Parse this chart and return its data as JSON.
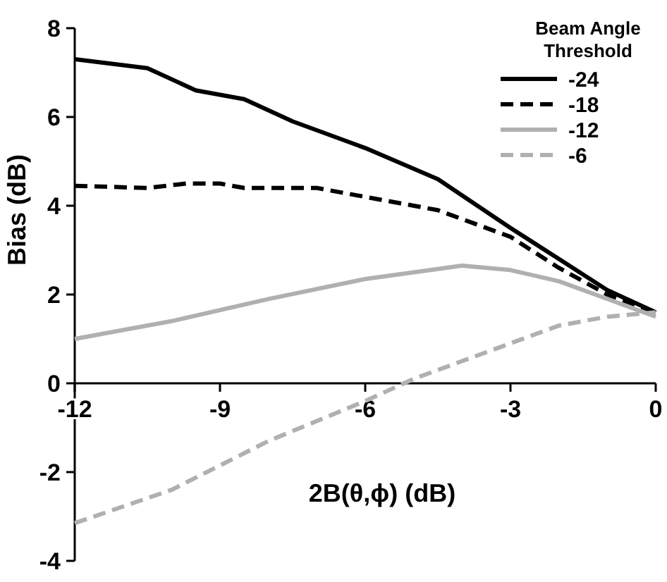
{
  "chart_data": {
    "type": "line",
    "xlabel": "2B(θ,ϕ) (dB)",
    "ylabel": "Bias (dB)",
    "legend_title": "Beam Angle Threshold",
    "legend": "top right",
    "grid": false,
    "xlim": [
      -12,
      0
    ],
    "xticks": [
      -12,
      -9,
      -6,
      -3,
      0
    ],
    "ylim": [
      -4,
      8
    ],
    "yticks": [
      -4,
      -2,
      0,
      2,
      4,
      6,
      8
    ],
    "series": [
      {
        "name": "-24",
        "color": "#000000",
        "line_style": "solid",
        "x": [
          -12,
          -10.5,
          -9.5,
          -8.5,
          -7.5,
          -6,
          -4.5,
          -3,
          -2,
          -1,
          0
        ],
        "values": [
          7.3,
          7.1,
          6.6,
          6.4,
          5.9,
          5.3,
          4.6,
          3.5,
          2.8,
          2.1,
          1.6
        ]
      },
      {
        "name": "-18",
        "color": "#000000",
        "line_style": "dashed",
        "x": [
          -12,
          -10.5,
          -9.7,
          -9,
          -8.5,
          -7,
          -6,
          -4.5,
          -3,
          -2,
          -1,
          0
        ],
        "values": [
          4.45,
          4.4,
          4.5,
          4.5,
          4.4,
          4.4,
          4.2,
          3.9,
          3.3,
          2.6,
          2.0,
          1.6
        ]
      },
      {
        "name": "-12",
        "color": "#b0b0b0",
        "line_style": "solid",
        "x": [
          -12,
          -10,
          -8,
          -6,
          -4,
          -3,
          -2,
          -1,
          0
        ],
        "values": [
          1.0,
          1.4,
          1.9,
          2.35,
          2.65,
          2.55,
          2.3,
          1.9,
          1.5
        ]
      },
      {
        "name": "-6",
        "color": "#b0b0b0",
        "line_style": "dashed",
        "x": [
          -12,
          -10,
          -8,
          -6,
          -5,
          -4,
          -3,
          -2,
          -1,
          0
        ],
        "values": [
          -3.15,
          -2.4,
          -1.3,
          -0.4,
          0.1,
          0.5,
          0.9,
          1.3,
          1.5,
          1.6
        ]
      }
    ]
  }
}
